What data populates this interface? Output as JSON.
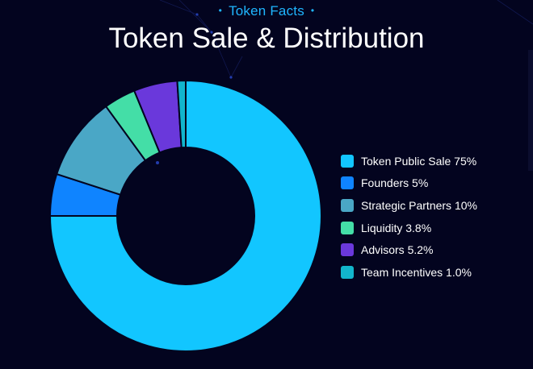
{
  "header": {
    "eyebrow": "Token Facts",
    "title": "Token Sale & Distribution"
  },
  "chart_data": {
    "type": "pie",
    "donut": true,
    "start_angle_deg": 0,
    "direction": "clockwise",
    "legend_position": "right",
    "slices": [
      {
        "label": "Token Public Sale 75%",
        "value": 75,
        "color": "#12c6ff"
      },
      {
        "label": "Founders 5%",
        "value": 5,
        "color": "#0f84ff"
      },
      {
        "label": "Strategic Partners 10%",
        "value": 10,
        "color": "#4aa7c6"
      },
      {
        "label": "Liquidity 3.8%",
        "value": 3.8,
        "color": "#44dea7"
      },
      {
        "label": "Advisors 5.2%",
        "value": 5.2,
        "color": "#6a38db"
      },
      {
        "label": "Team Incentives 1.0%",
        "value": 1.0,
        "color": "#12b5cc"
      }
    ]
  }
}
